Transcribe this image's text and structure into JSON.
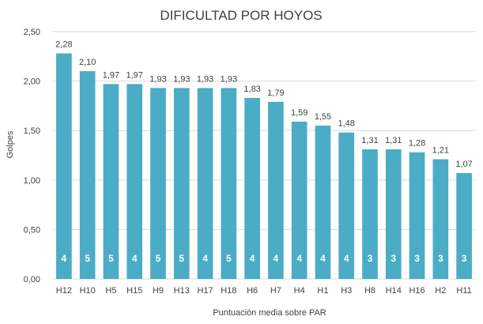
{
  "chart_data": {
    "type": "bar",
    "title": "DIFICULTAD POR HOYOS",
    "xlabel": "Puntuación media sobre PAR",
    "ylabel": "Golpes",
    "ylim": [
      0,
      2.5
    ],
    "yticks": [
      "0,00",
      "0,50",
      "1,00",
      "1,50",
      "2,00",
      "2,50"
    ],
    "grid": true,
    "categories": [
      "H12",
      "H10",
      "H5",
      "H15",
      "H9",
      "H13",
      "H17",
      "H18",
      "H6",
      "H7",
      "H4",
      "H1",
      "H3",
      "H8",
      "H14",
      "H16",
      "H2",
      "H11"
    ],
    "values": [
      2.28,
      2.1,
      1.97,
      1.97,
      1.93,
      1.93,
      1.93,
      1.93,
      1.83,
      1.79,
      1.59,
      1.55,
      1.48,
      1.31,
      1.31,
      1.28,
      1.21,
      1.07
    ],
    "value_labels": [
      "2,28",
      "2,10",
      "1,97",
      "1,97",
      "1,93",
      "1,93",
      "1,93",
      "1,93",
      "1,83",
      "1,79",
      "1,59",
      "1,55",
      "1,48",
      "1,31",
      "1,31",
      "1,28",
      "1,21",
      "1,07"
    ],
    "par_labels": [
      "4",
      "5",
      "5",
      "4",
      "5",
      "5",
      "4",
      "5",
      "4",
      "4",
      "4",
      "4",
      "4",
      "3",
      "3",
      "3",
      "3",
      "3"
    ],
    "colors": {
      "bar": "#4BACC6",
      "grid": "#D9D9D9",
      "text": "#404040",
      "inner_label": "#FFFFFF"
    }
  }
}
